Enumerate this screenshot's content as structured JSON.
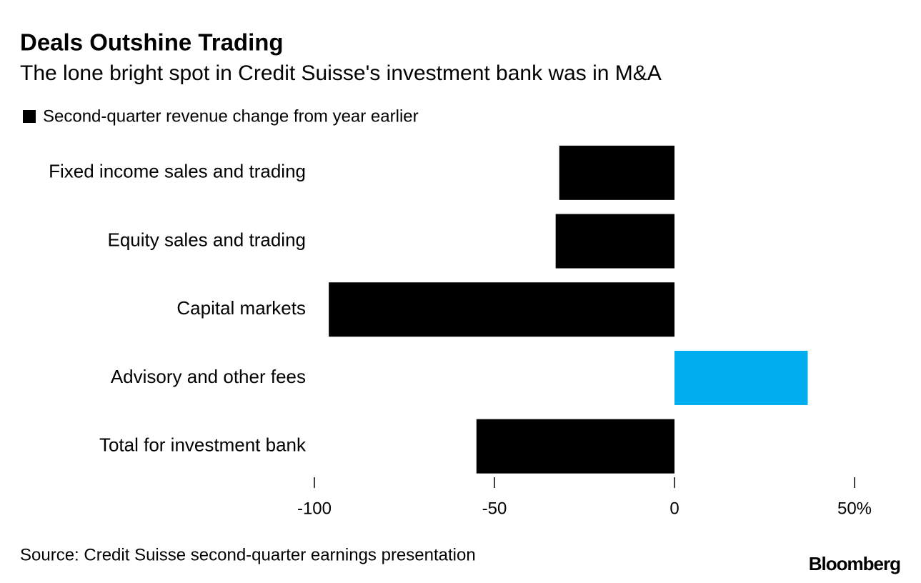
{
  "chart_data": {
    "type": "bar",
    "orientation": "horizontal",
    "title": "Deals Outshine Trading",
    "subtitle": "The lone bright spot in Credit Suisse's investment bank was in M&A",
    "categories": [
      "Fixed income sales and trading",
      "Equity sales and trading",
      "Capital markets",
      "Advisory and other fees",
      "Total for investment bank"
    ],
    "series": [
      {
        "name": "Second-quarter revenue change from year earlier",
        "color": "#000000",
        "values": [
          -32,
          -33,
          -96,
          37,
          -55
        ],
        "colors": [
          "#000000",
          "#000000",
          "#000000",
          "#00adef",
          "#000000"
        ]
      }
    ],
    "xlim": [
      -100,
      50
    ],
    "xticks": [
      -100,
      -50,
      0,
      {
        "value": 50,
        "label": "50%"
      }
    ],
    "grid": false,
    "source": "Source: Credit Suisse second-quarter earnings presentation",
    "brand": "Bloomberg"
  }
}
